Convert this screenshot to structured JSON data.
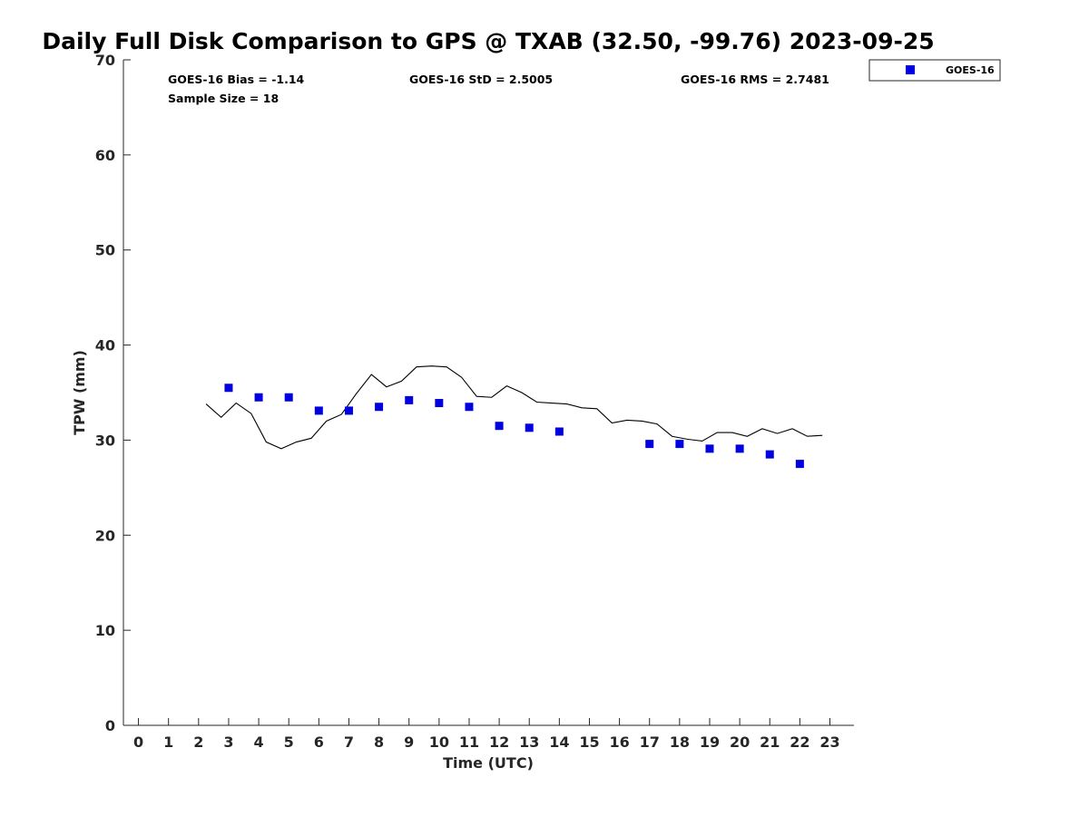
{
  "chart_data": {
    "type": "scatter",
    "title": "Daily Full Disk Comparison to GPS @ TXAB (32.50, -99.76) 2023-09-25",
    "xlabel": "Time (UTC)",
    "ylabel": "TPW (mm)",
    "xlim": [
      -0.5,
      23.8
    ],
    "ylim": [
      0,
      70
    ],
    "x_ticks": [
      "0",
      "1",
      "2",
      "3",
      "4",
      "5",
      "6",
      "7",
      "8",
      "9",
      "10",
      "11",
      "12",
      "13",
      "14",
      "15",
      "16",
      "17",
      "18",
      "19",
      "20",
      "21",
      "22",
      "23"
    ],
    "y_ticks": [
      "0",
      "10",
      "20",
      "30",
      "40",
      "50",
      "60",
      "70"
    ],
    "grid": false,
    "legend": {
      "position": "top-right",
      "entries": [
        "GOES-16"
      ]
    },
    "annotations": {
      "bias": "GOES-16 Bias = -1.14",
      "std": "GOES-16 StD = 2.5005",
      "rms": "GOES-16 RMS = 2.7481",
      "sample_size": "Sample Size = 18"
    },
    "series": [
      {
        "name": "GOES-16",
        "marker": "square",
        "color": "#0000e0",
        "x": [
          3,
          4,
          5,
          6,
          7,
          8,
          9,
          10,
          11,
          12,
          13,
          14,
          17,
          18,
          19,
          20,
          21,
          22
        ],
        "y": [
          35.5,
          34.5,
          34.5,
          33.1,
          33.1,
          33.5,
          34.2,
          33.9,
          33.5,
          31.5,
          31.3,
          30.9,
          29.6,
          29.6,
          29.1,
          29.1,
          28.5,
          27.5
        ]
      },
      {
        "marker": "line",
        "color": "#000000",
        "x": [
          2.25,
          2.75,
          3.25,
          3.75,
          4.25,
          4.75,
          5.25,
          5.75,
          6.25,
          6.75,
          7.25,
          7.75,
          8.25,
          8.75,
          9.25,
          9.75,
          10.25,
          10.75,
          11.25,
          11.75,
          12.25,
          12.75,
          13.25,
          13.75,
          14.25,
          14.75,
          15.25,
          15.75,
          16.25,
          16.75,
          17.25,
          17.75,
          18.25,
          18.75,
          19.25,
          19.75,
          20.25,
          20.75,
          21.25,
          21.75,
          22.25,
          22.75
        ],
        "y": [
          33.8,
          32.4,
          33.9,
          32.8,
          29.8,
          29.1,
          29.8,
          30.2,
          32.0,
          32.7,
          34.9,
          36.9,
          35.6,
          36.2,
          37.7,
          37.8,
          37.7,
          36.6,
          34.6,
          34.5,
          35.7,
          35.0,
          34.0,
          33.9,
          33.8,
          33.4,
          33.3,
          31.8,
          32.1,
          32.0,
          31.7,
          30.4,
          30.1,
          29.9,
          30.8,
          30.8,
          30.4,
          31.2,
          30.7,
          31.2,
          30.4,
          30.5
        ]
      }
    ]
  }
}
